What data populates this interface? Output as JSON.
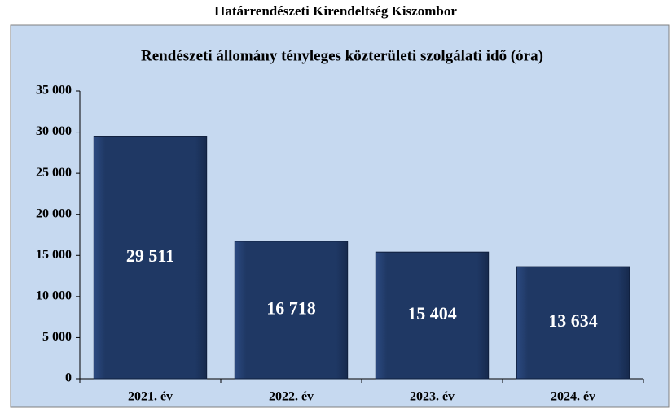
{
  "chart_data": {
    "type": "bar",
    "title": "Határrendészeti Kirendeltség Kiszombor",
    "subtitle": "Rendészeti állomány tényleges közterületi szolgálati idő (óra)",
    "categories": [
      "2021. év",
      "2022. év",
      "2023. év",
      "2024. év"
    ],
    "values": [
      29511,
      16718,
      15404,
      13634
    ],
    "value_labels": [
      "29 511",
      "16 718",
      "15 404",
      "13 634"
    ],
    "color": "#1f3864",
    "ylim": [
      0,
      35000
    ],
    "yticks": [
      0,
      {
        "value": 5000,
        "label": "5 000"
      },
      {
        "value": 10000,
        "label": "10 000"
      },
      {
        "value": 15000,
        "label": "15 000"
      },
      {
        "value": 20000,
        "label": "20 000"
      },
      {
        "value": 25000,
        "label": "25 000"
      },
      {
        "value": 30000,
        "label": "30 000"
      },
      {
        "value": 35000,
        "label": "35 000"
      }
    ],
    "grid": false
  }
}
